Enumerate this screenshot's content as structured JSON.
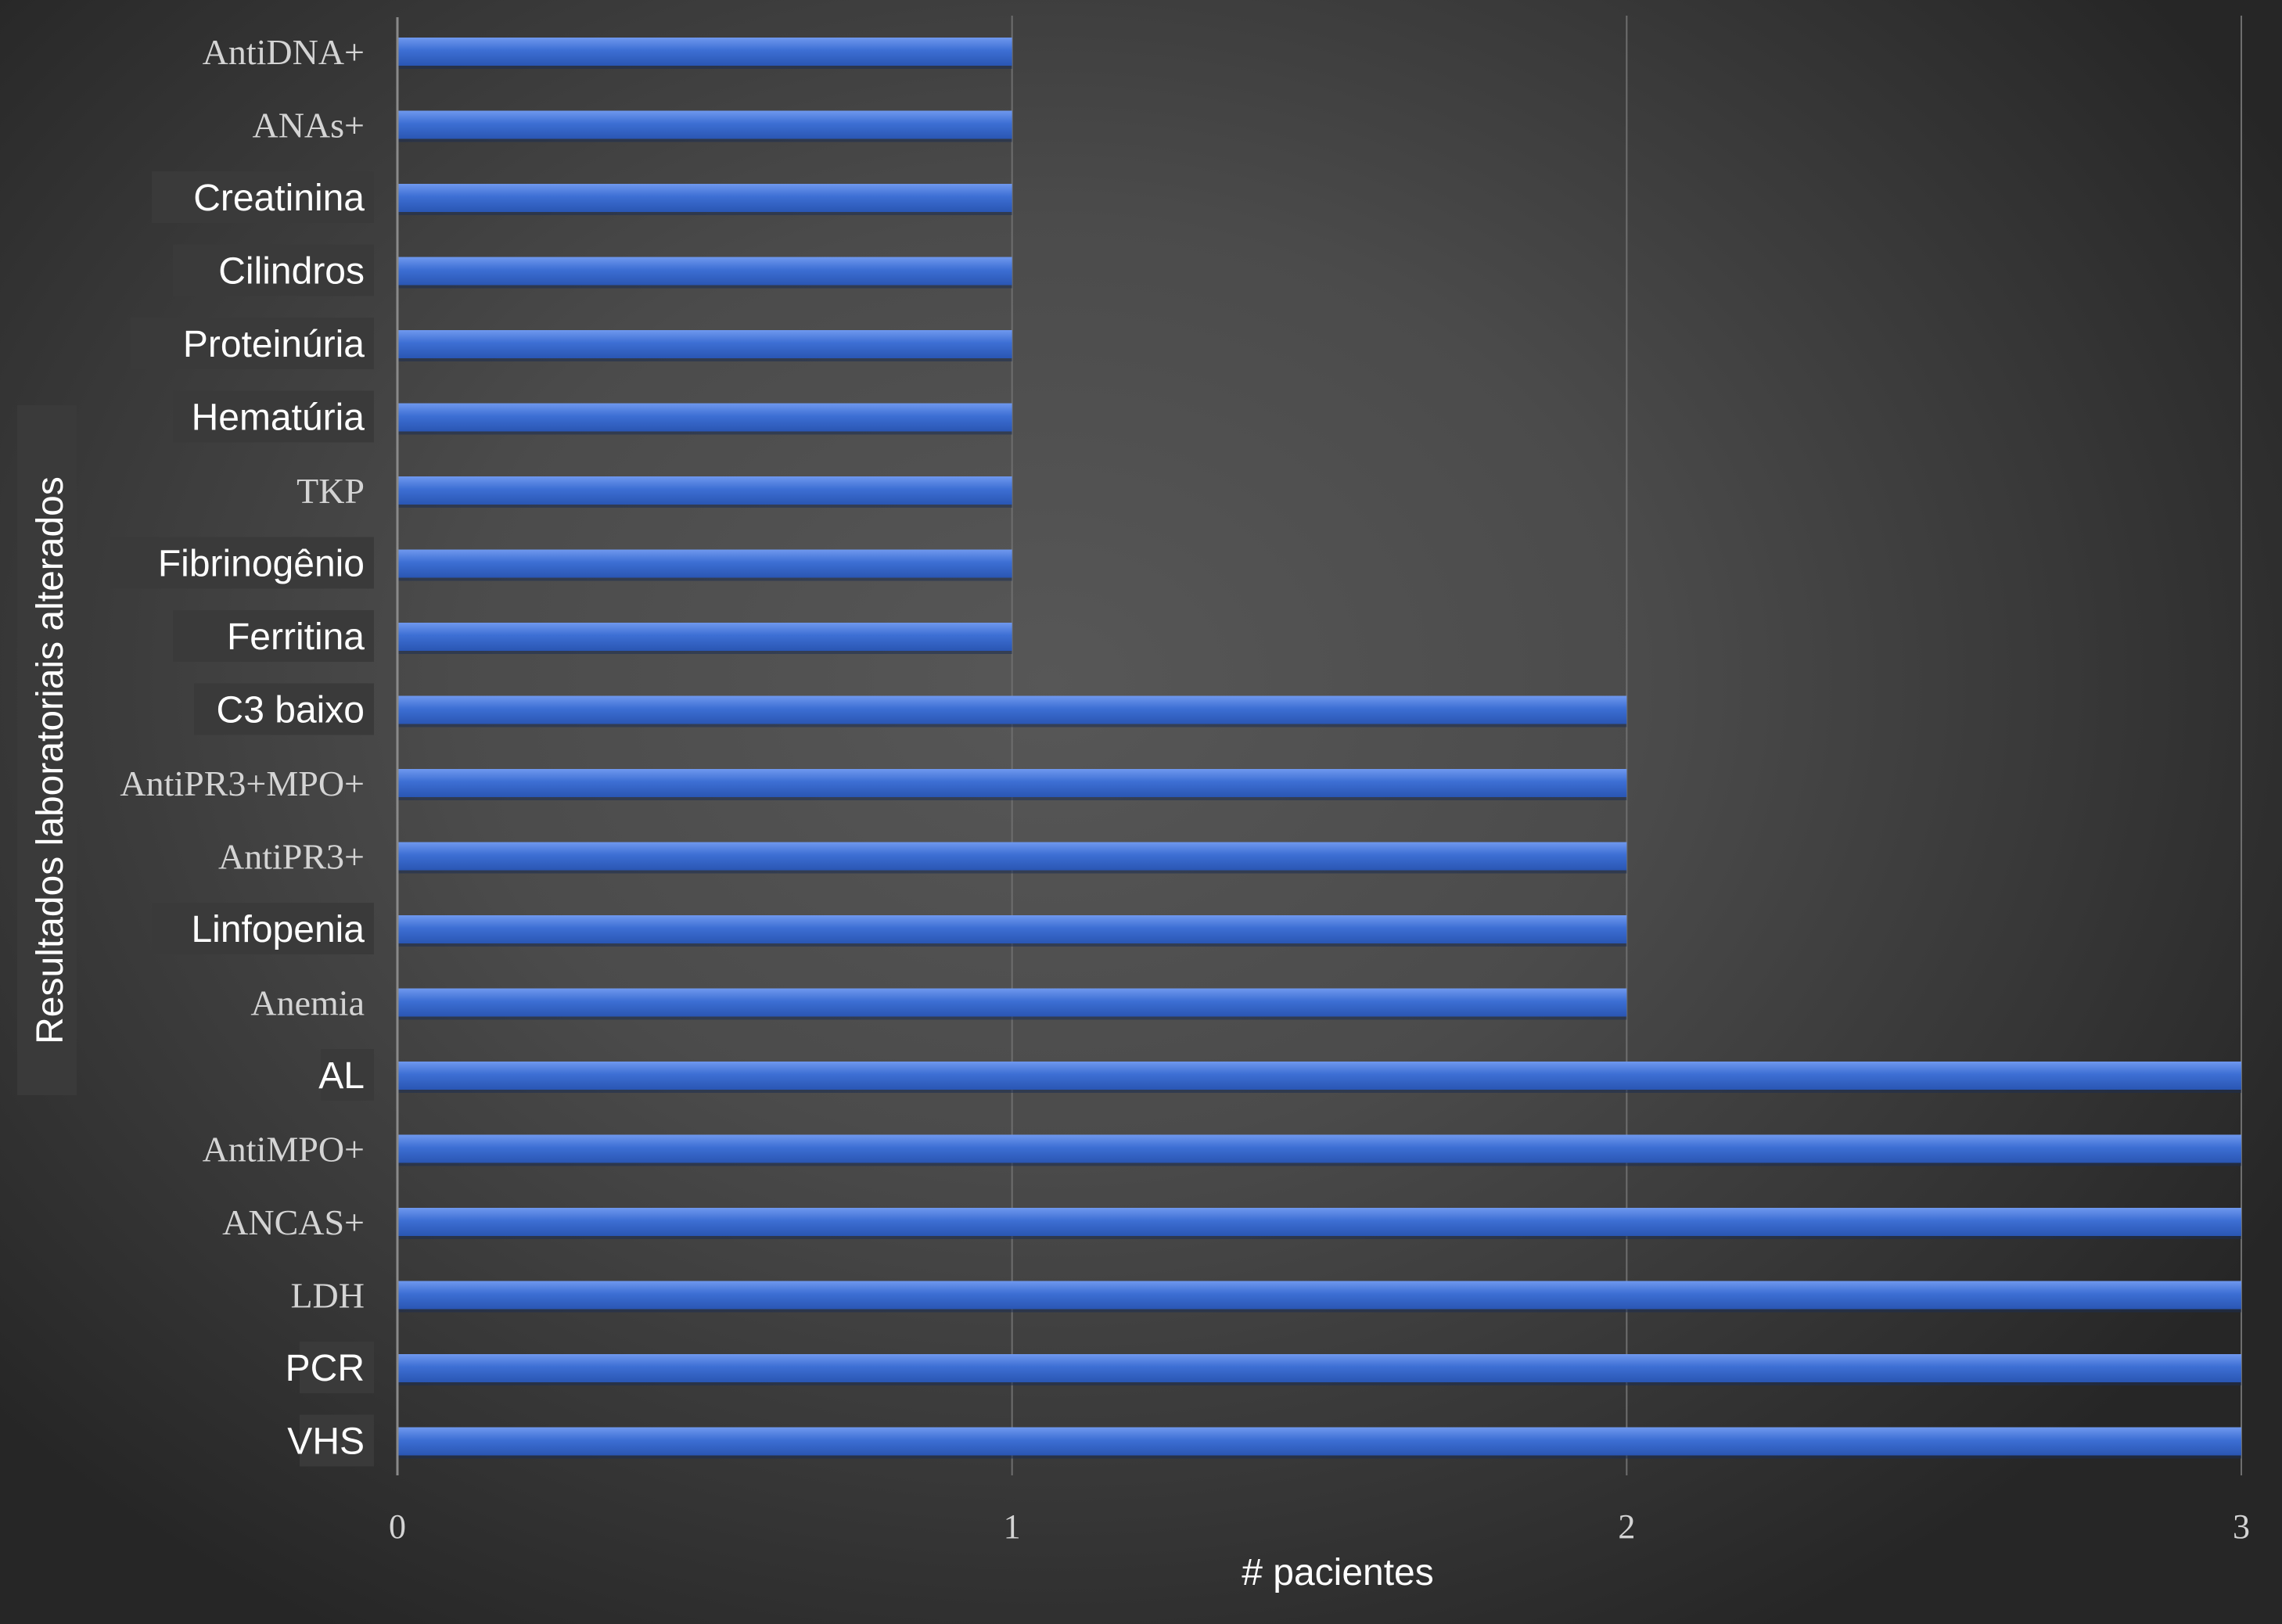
{
  "chart_data": {
    "type": "bar",
    "orientation": "horizontal",
    "xlabel": "# pacientes",
    "ylabel": "Resultados laboratoriais alterados",
    "xlim": [
      0,
      3
    ],
    "xticks": [
      "0",
      "1",
      "2",
      "3"
    ],
    "grid": true,
    "legend": "none",
    "categories": [
      "AntiDNA+",
      "ANAs+",
      "Creatinina",
      "Cilindros",
      "Proteinúria",
      "Hematúria",
      "TKP",
      "Fibrinogênio",
      "Ferritina",
      "C3 baixo",
      "AntiPR3+MPO+",
      "AntiPR3+",
      "Linfopenia",
      "Anemia",
      "AL",
      "AntiMPO+",
      "ANCAS+",
      "LDH",
      "PCR",
      "VHS"
    ],
    "values": [
      1,
      1,
      1,
      1,
      1,
      1,
      1,
      1,
      1,
      2,
      2,
      2,
      2,
      2,
      3,
      3,
      3,
      3,
      3,
      3
    ],
    "label_styles": [
      "serif",
      "serif",
      "sans",
      "sans",
      "sans",
      "sans",
      "serif",
      "sans",
      "sans",
      "sans",
      "serif",
      "serif",
      "sans",
      "serif",
      "sans",
      "serif",
      "serif",
      "serif",
      "sans",
      "sans"
    ],
    "bar_color": "#3d6fd4"
  }
}
